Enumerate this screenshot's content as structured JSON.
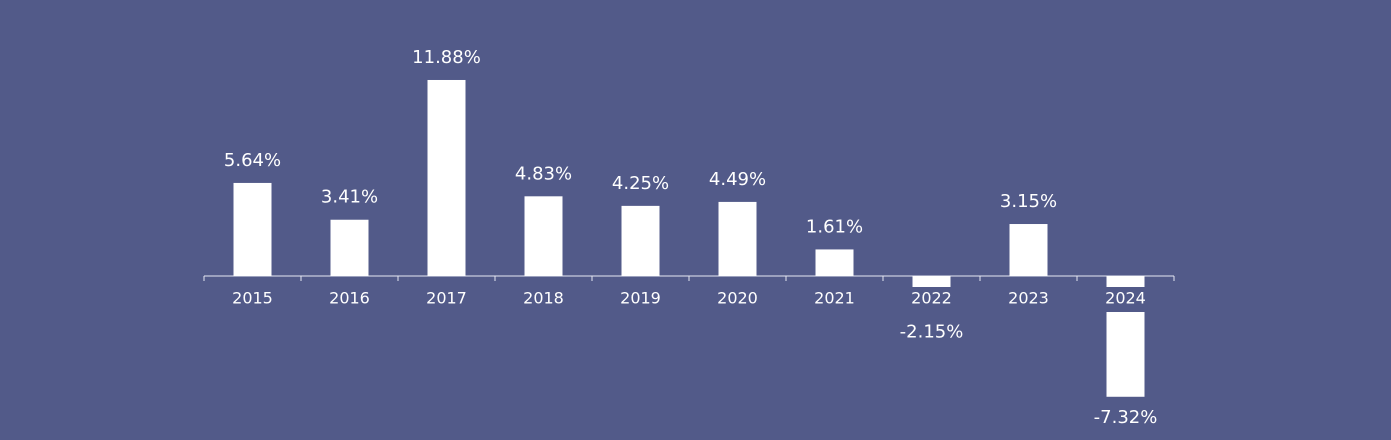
{
  "chart_data": {
    "type": "bar",
    "categories": [
      "2015",
      "2016",
      "2017",
      "2018",
      "2019",
      "2020",
      "2021",
      "2022",
      "2023",
      "2024"
    ],
    "values": [
      5.64,
      3.41,
      11.88,
      4.83,
      4.25,
      4.49,
      1.61,
      -2.15,
      3.15,
      -7.32
    ],
    "value_labels": [
      "5.64%",
      "3.41%",
      "11.88%",
      "4.83%",
      "4.25%",
      "4.49%",
      "1.61%",
      "-2.15%",
      "3.15%",
      "-7.32%"
    ],
    "color": "#ffffff"
  }
}
